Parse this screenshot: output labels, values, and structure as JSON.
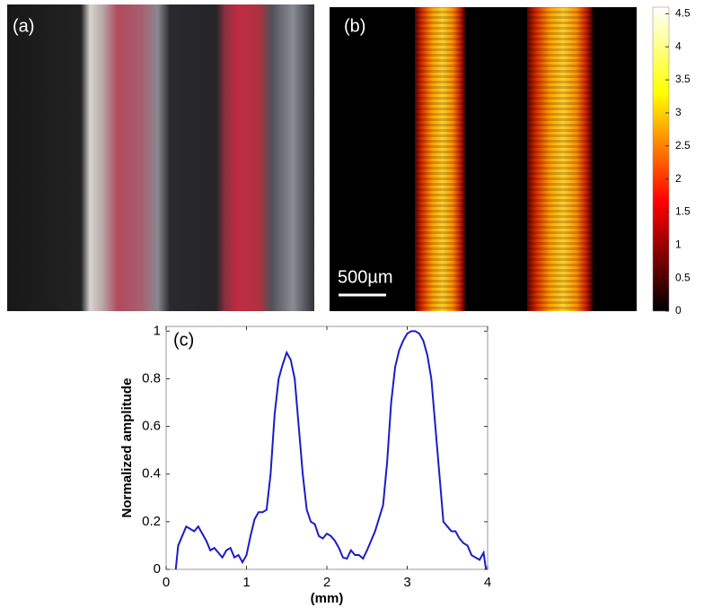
{
  "panels": {
    "a": {
      "label": "(a)"
    },
    "b": {
      "label": "(b)",
      "scale_bar": "500µm"
    }
  },
  "colorbar": {
    "lim": [
      0,
      4.6
    ],
    "ticks": [
      0,
      0.5,
      1,
      1.5,
      2,
      2.5,
      3,
      3.5,
      4,
      4.5
    ]
  },
  "chart_data": {
    "type": "line",
    "annotation": "(c)",
    "x_label": "(mm)",
    "y_label": "Normalized amplitude",
    "xlim": [
      0,
      4
    ],
    "xticks": [
      0,
      1,
      2,
      3,
      4
    ],
    "ylim": [
      0,
      1.02
    ],
    "yticks": [
      0,
      0.2,
      0.4,
      0.6,
      0.8,
      1
    ],
    "series": [
      {
        "color": "#1c1cc8",
        "x": [
          0.12,
          0.15,
          0.2,
          0.25,
          0.3,
          0.35,
          0.4,
          0.45,
          0.5,
          0.55,
          0.6,
          0.65,
          0.7,
          0.75,
          0.8,
          0.85,
          0.9,
          0.95,
          1.0,
          1.05,
          1.1,
          1.15,
          1.2,
          1.25,
          1.3,
          1.35,
          1.4,
          1.45,
          1.5,
          1.55,
          1.6,
          1.65,
          1.7,
          1.75,
          1.8,
          1.85,
          1.9,
          1.95,
          2.0,
          2.05,
          2.1,
          2.15,
          2.2,
          2.25,
          2.3,
          2.35,
          2.4,
          2.45,
          2.5,
          2.6,
          2.7,
          2.75,
          2.8,
          2.85,
          2.9,
          2.95,
          3.0,
          3.05,
          3.1,
          3.15,
          3.2,
          3.25,
          3.3,
          3.35,
          3.4,
          3.45,
          3.5,
          3.55,
          3.6,
          3.65,
          3.7,
          3.75,
          3.8,
          3.85,
          3.9,
          3.95,
          3.98
        ],
        "values": [
          0,
          0.1,
          0.14,
          0.18,
          0.17,
          0.16,
          0.18,
          0.15,
          0.12,
          0.08,
          0.09,
          0.07,
          0.05,
          0.08,
          0.09,
          0.05,
          0.06,
          0.03,
          0.06,
          0.14,
          0.21,
          0.24,
          0.24,
          0.25,
          0.4,
          0.65,
          0.8,
          0.86,
          0.91,
          0.88,
          0.8,
          0.6,
          0.4,
          0.25,
          0.2,
          0.19,
          0.14,
          0.13,
          0.15,
          0.14,
          0.12,
          0.09,
          0.05,
          0.045,
          0.08,
          0.06,
          0.06,
          0.045,
          0.08,
          0.16,
          0.27,
          0.45,
          0.7,
          0.85,
          0.92,
          0.96,
          0.99,
          1.0,
          1.0,
          0.99,
          0.96,
          0.9,
          0.8,
          0.6,
          0.4,
          0.2,
          0.18,
          0.16,
          0.16,
          0.13,
          0.11,
          0.1,
          0.06,
          0.05,
          0.04,
          0.07,
          0
        ]
      }
    ]
  }
}
